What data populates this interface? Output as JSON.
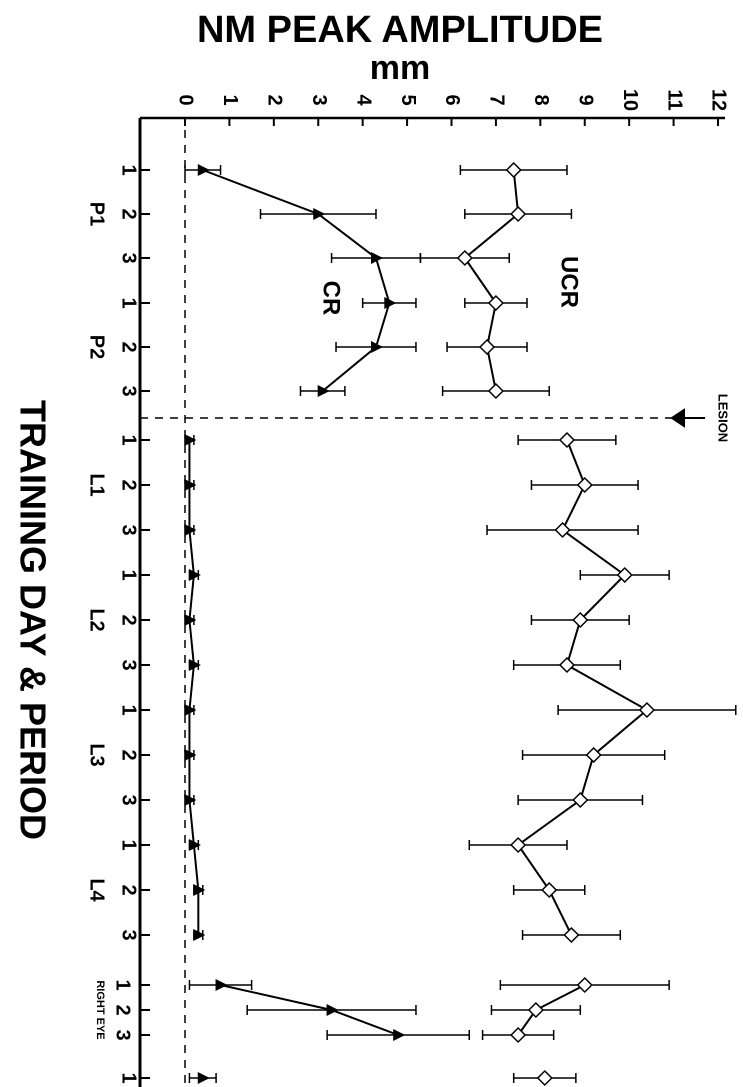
{
  "chart_data": {
    "type": "line",
    "title": "NM PEAK AMPLITUDE",
    "value_axis_label": "mm",
    "category_axis_label": "TRAINING DAY & PERIOD",
    "annotation": "LESION",
    "groups": [
      {
        "label": "P1",
        "days": [
          "1",
          "2",
          "3"
        ]
      },
      {
        "label": "P2",
        "days": [
          "1",
          "2",
          "3"
        ]
      },
      {
        "label": "L1",
        "days": [
          "1",
          "2",
          "3"
        ]
      },
      {
        "label": "L2",
        "days": [
          "1",
          "2",
          "3"
        ]
      },
      {
        "label": "L3",
        "days": [
          "1",
          "2",
          "3"
        ]
      },
      {
        "label": "L4",
        "days": [
          "1",
          "2",
          "3"
        ]
      },
      {
        "label": "RIGHT EYE",
        "days": [
          "1",
          "2",
          "3"
        ]
      },
      {
        "label": null,
        "days": [
          "1"
        ]
      }
    ],
    "series": [
      {
        "name": "CR",
        "marker": "triangle",
        "color": "#000000",
        "values": [
          0.4,
          3.0,
          4.3,
          4.6,
          4.3,
          3.1,
          0.1,
          0.1,
          0.1,
          0.2,
          0.1,
          0.2,
          0.1,
          0.1,
          0.1,
          0.2,
          0.3,
          0.3,
          0.8,
          3.3,
          4.8,
          0.4
        ],
        "errors": [
          0.4,
          1.3,
          1.0,
          0.6,
          0.9,
          0.5,
          0.1,
          0.1,
          0.1,
          0.1,
          0.1,
          0.1,
          0.1,
          0.1,
          0.1,
          0.1,
          0.1,
          0.1,
          0.7,
          1.9,
          1.6,
          0.3
        ]
      },
      {
        "name": "UCR",
        "marker": "diamond",
        "color": "#000000",
        "values": [
          7.4,
          7.5,
          6.3,
          7.0,
          6.8,
          7.0,
          8.6,
          9.0,
          8.5,
          9.9,
          8.9,
          8.6,
          10.4,
          9.2,
          8.9,
          7.5,
          8.2,
          8.7,
          9.0,
          7.9,
          7.5,
          8.1
        ],
        "errors": [
          1.2,
          1.2,
          1.0,
          0.7,
          0.9,
          1.2,
          1.1,
          1.2,
          1.7,
          1.0,
          1.1,
          1.2,
          2.0,
          1.6,
          1.4,
          1.1,
          0.8,
          1.1,
          1.9,
          1.0,
          0.8,
          0.7
        ]
      }
    ],
    "xlim": [
      0,
      12
    ],
    "xticks": [
      0,
      1,
      2,
      3,
      4,
      5,
      6,
      7,
      8,
      9,
      10,
      11,
      12
    ]
  }
}
